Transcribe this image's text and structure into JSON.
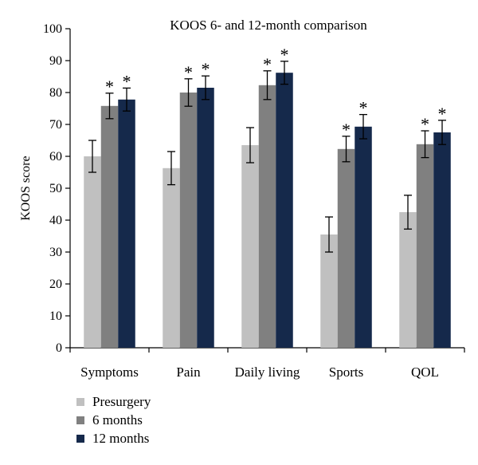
{
  "chart_data": {
    "type": "bar",
    "title": "KOOS 6- and 12-month comparison",
    "xlabel": "",
    "ylabel": "KOOS score",
    "ylim": [
      0,
      100
    ],
    "yticks": [
      0,
      10,
      20,
      30,
      40,
      50,
      60,
      70,
      80,
      90,
      100
    ],
    "grid": false,
    "legend_position": "bottom-left",
    "significance_marker": "*",
    "categories": [
      "Symptoms",
      "Pain",
      "Daily living",
      "Sports",
      "QOL"
    ],
    "series": [
      {
        "name": "Presurgery",
        "color": "#c0c0c0",
        "values": [
          60,
          56.3,
          63.5,
          35.5,
          42.5
        ],
        "error": [
          5,
          5.2,
          5.5,
          5.5,
          5.3
        ],
        "significant": [
          false,
          false,
          false,
          false,
          false
        ]
      },
      {
        "name": "6 months",
        "color": "#808080",
        "values": [
          75.8,
          80,
          82.3,
          62.3,
          63.8
        ],
        "error": [
          4,
          4.3,
          4.5,
          4,
          4.2
        ],
        "significant": [
          true,
          true,
          true,
          true,
          true
        ]
      },
      {
        "name": "12 months",
        "color": "#15294b",
        "values": [
          77.8,
          81.5,
          86.2,
          69.3,
          67.5
        ],
        "error": [
          3.6,
          3.7,
          3.6,
          3.8,
          3.8
        ],
        "significant": [
          true,
          true,
          true,
          true,
          true
        ]
      }
    ]
  }
}
